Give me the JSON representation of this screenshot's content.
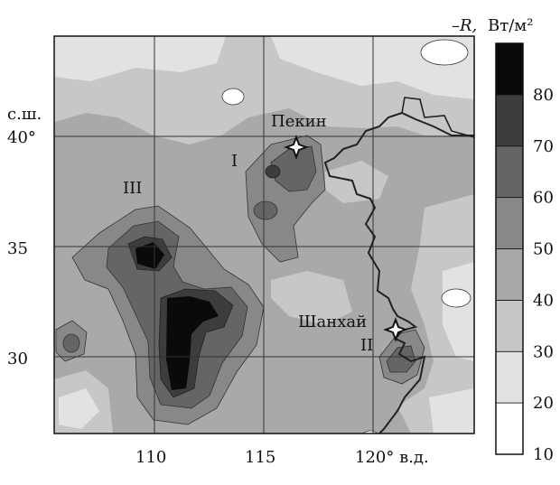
{
  "map": {
    "latitude_label": "с.ш.",
    "lat_ticks": [
      "40°",
      "35",
      "30"
    ],
    "lon_ticks": [
      "110",
      "115",
      "120° в.д."
    ],
    "cities": [
      {
        "name": "Пекин",
        "icon": "star-marker-icon"
      },
      {
        "name": "Шанхай",
        "icon": "star-marker-icon"
      }
    ],
    "region_labels": [
      "I",
      "II",
      "III"
    ]
  },
  "colorbar": {
    "title_symbol": "–R,",
    "title_units": "Вт/м²",
    "ticks": [
      "10",
      "20",
      "30",
      "40",
      "50",
      "60",
      "70",
      "80"
    ],
    "colors": [
      "#ffffff",
      "#e2e2e2",
      "#c7c7c7",
      "#a9a9a9",
      "#888888",
      "#656565",
      "#3d3d3d",
      "#0a0a0a"
    ]
  },
  "colors": {
    "coastline": "#222222",
    "grid": "#333333"
  }
}
